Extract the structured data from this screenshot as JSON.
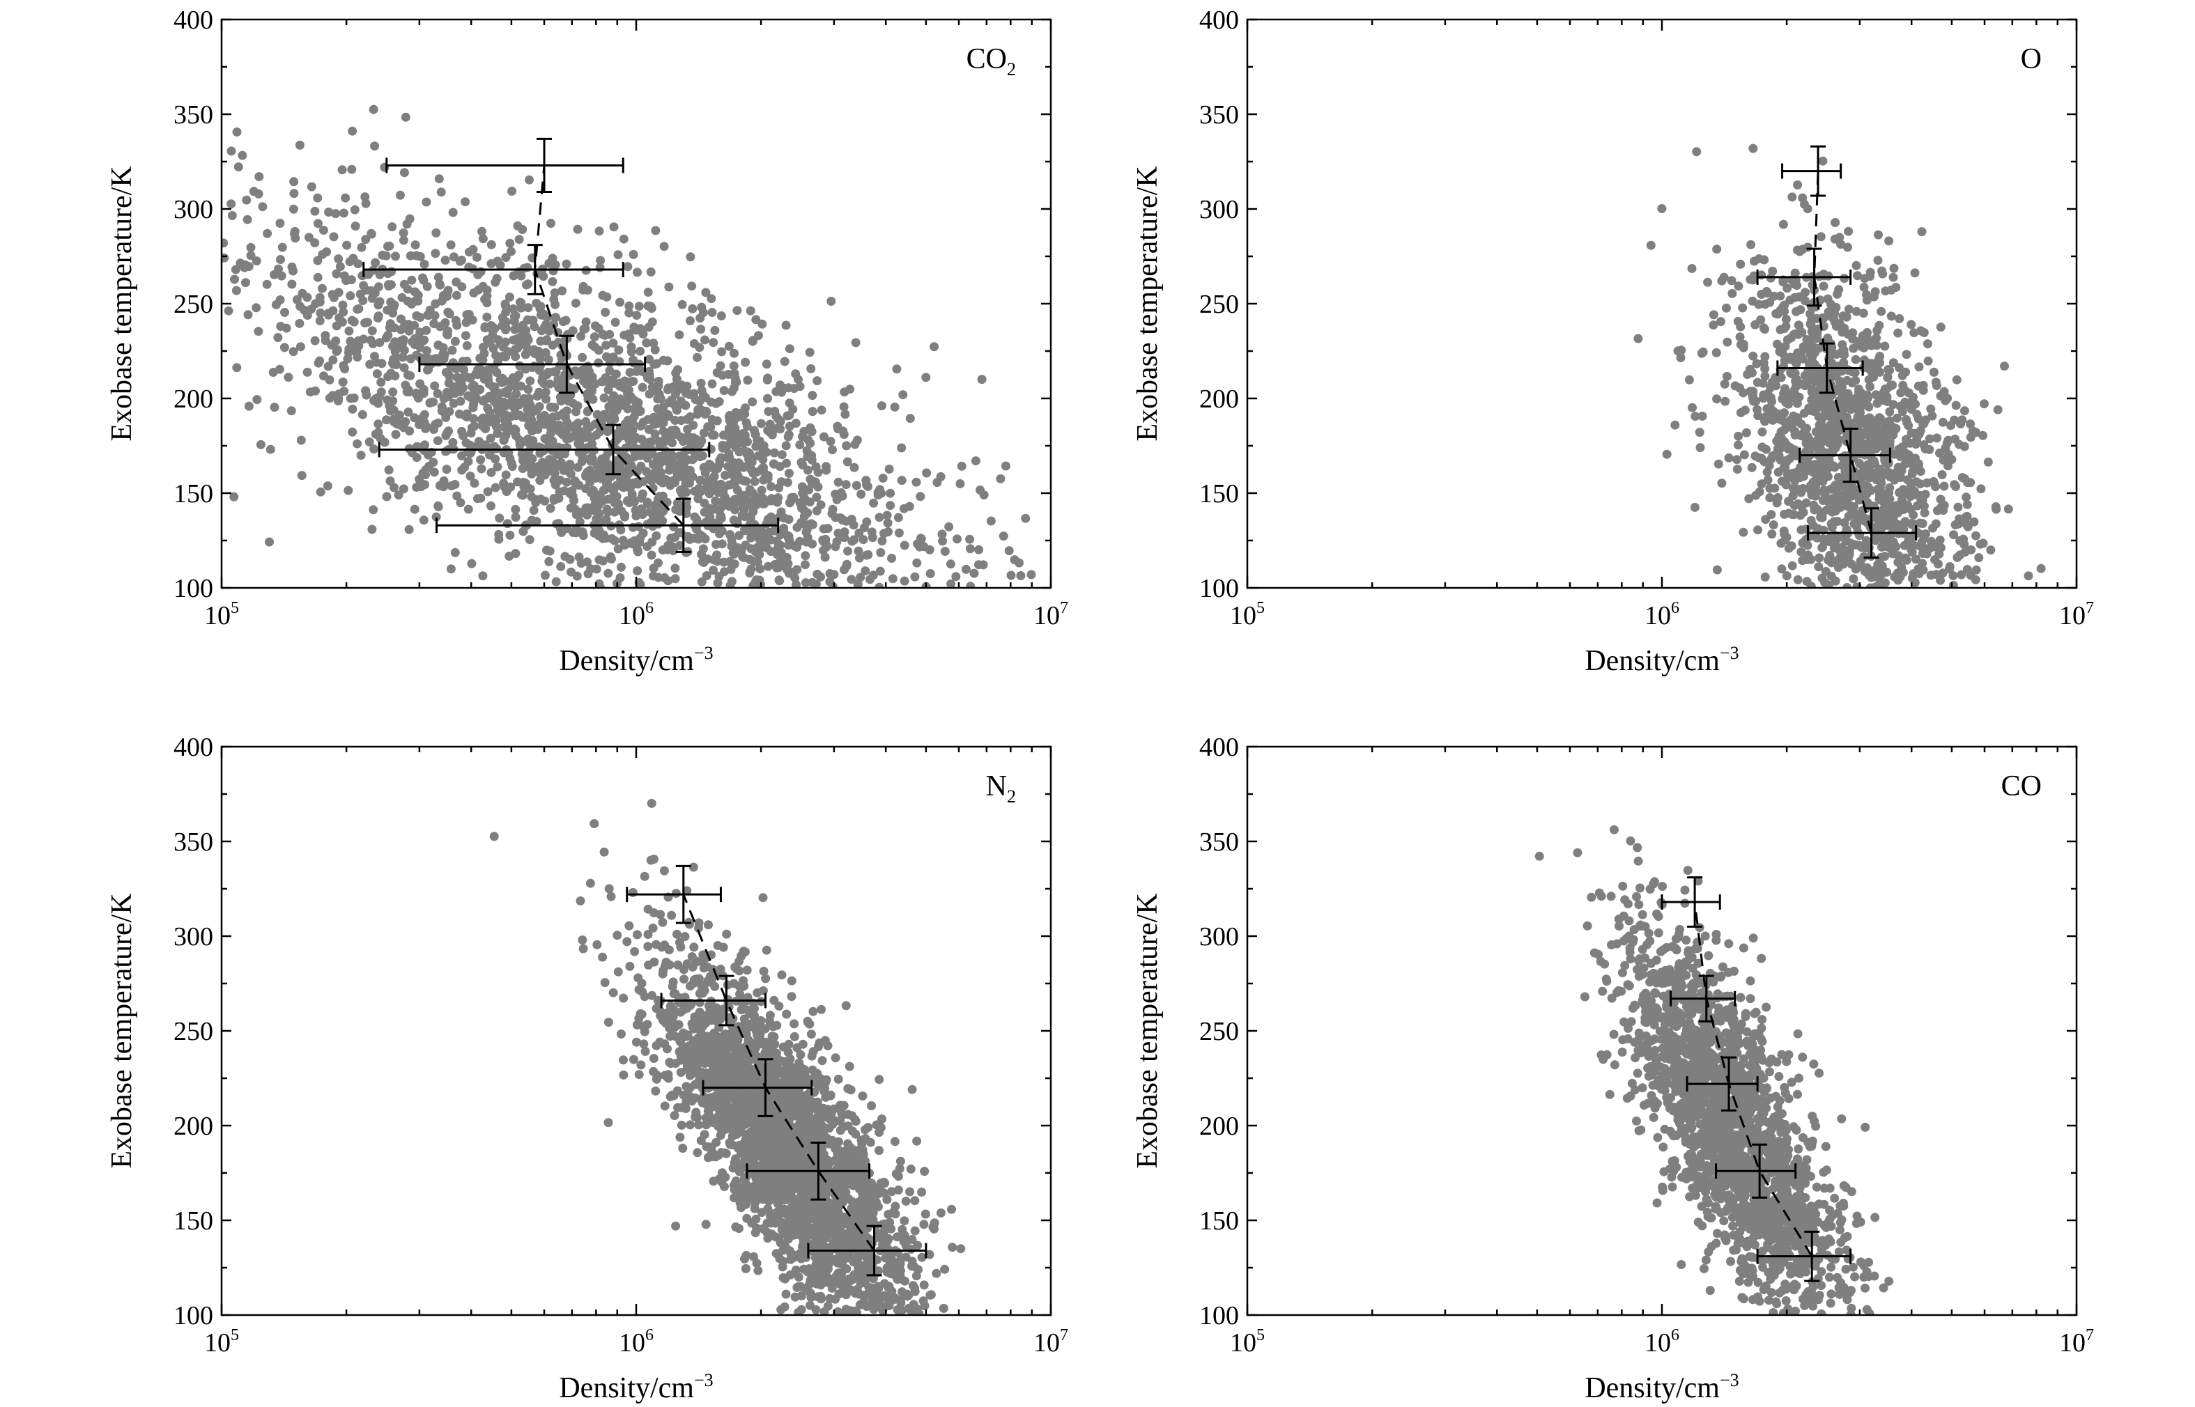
{
  "colors": {
    "points": "#7f7f7f",
    "lines": "#000000",
    "background": "#ffffff"
  },
  "chart_data": [
    {
      "type": "scatter",
      "panel": "top-left",
      "species_label": {
        "base": "CO",
        "sub": "2"
      },
      "species_label_position": "top-right",
      "xlabel": {
        "base": "Density/cm",
        "sup": "−3"
      },
      "ylabel": "Exobase temperature/K",
      "xscale": "log",
      "xlim": [
        100000,
        10000000
      ],
      "ylim": [
        100,
        400
      ],
      "x_ticks": [
        {
          "value": 100000,
          "base": "10",
          "exp": "5"
        },
        {
          "value": 1000000,
          "base": "10",
          "exp": "6"
        },
        {
          "value": 10000000,
          "base": "10",
          "exp": "7"
        }
      ],
      "y_ticks": [
        "100",
        "150",
        "200",
        "250",
        "300",
        "350",
        "400"
      ],
      "grid": false,
      "legend": "none",
      "scatter_cloud": {
        "count": 2600,
        "temp_center": 180,
        "temp_sd": 55,
        "log_density_center": 5.93,
        "log_density_slope": -0.0052,
        "log_density_sd": 0.3
      },
      "bins": [
        {
          "x": 1300000,
          "y": 133,
          "x_err": [
            330000,
            2200000
          ],
          "y_err": 14
        },
        {
          "x": 880000,
          "y": 173,
          "x_err": [
            240000,
            1500000
          ],
          "y_err": 13
        },
        {
          "x": 680000,
          "y": 218,
          "x_err": [
            300000,
            1050000
          ],
          "y_err": 15
        },
        {
          "x": 570000,
          "y": 268,
          "x_err": [
            220000,
            930000
          ],
          "y_err": 13
        },
        {
          "x": 600000,
          "y": 323,
          "x_err": [
            250000,
            930000
          ],
          "y_err": 14
        }
      ]
    },
    {
      "type": "scatter",
      "panel": "top-right",
      "species_label": {
        "base": "O",
        "sub": ""
      },
      "species_label_position": "top-right",
      "xlabel": {
        "base": "Density/cm",
        "sup": "−3"
      },
      "ylabel": "Exobase temperature/K",
      "xscale": "log",
      "xlim": [
        100000,
        10000000
      ],
      "ylim": [
        100,
        400
      ],
      "x_ticks": [
        {
          "value": 100000,
          "base": "10",
          "exp": "5"
        },
        {
          "value": 1000000,
          "base": "10",
          "exp": "6"
        },
        {
          "value": 10000000,
          "base": "10",
          "exp": "7"
        }
      ],
      "y_ticks": [
        "100",
        "150",
        "200",
        "250",
        "300",
        "350",
        "400"
      ],
      "grid": false,
      "legend": "none",
      "scatter_cloud": {
        "count": 1600,
        "temp_center": 170,
        "temp_sd": 50,
        "log_density_center": 6.455,
        "log_density_slope": -0.0012,
        "log_density_sd": 0.13
      },
      "bins": [
        {
          "x": 3200000,
          "y": 129,
          "x_err": [
            2250000,
            4100000
          ],
          "y_err": 13
        },
        {
          "x": 2850000,
          "y": 170,
          "x_err": [
            2150000,
            3550000
          ],
          "y_err": 14
        },
        {
          "x": 2500000,
          "y": 216,
          "x_err": [
            1900000,
            3050000
          ],
          "y_err": 13
        },
        {
          "x": 2330000,
          "y": 264,
          "x_err": [
            1700000,
            2850000
          ],
          "y_err": 15
        },
        {
          "x": 2380000,
          "y": 320,
          "x_err": [
            1950000,
            2700000
          ],
          "y_err": 13
        }
      ]
    },
    {
      "type": "scatter",
      "panel": "bottom-left",
      "species_label": {
        "base": "N",
        "sub": "2"
      },
      "species_label_position": "top-right",
      "xlabel": {
        "base": "Density/cm",
        "sup": "−3"
      },
      "ylabel": "Exobase temperature/K",
      "xscale": "log",
      "xlim": [
        100000,
        10000000
      ],
      "ylim": [
        100,
        400
      ],
      "x_ticks": [
        {
          "value": 100000,
          "base": "10",
          "exp": "5"
        },
        {
          "value": 1000000,
          "base": "10",
          "exp": "6"
        },
        {
          "value": 10000000,
          "base": "10",
          "exp": "7"
        }
      ],
      "y_ticks": [
        "100",
        "150",
        "200",
        "250",
        "300",
        "350",
        "400"
      ],
      "grid": false,
      "legend": "none",
      "scatter_cloud": {
        "count": 2600,
        "temp_center": 185,
        "temp_sd": 52,
        "log_density_center": 6.37,
        "log_density_slope": -0.0024,
        "log_density_sd": 0.1
      },
      "bins": [
        {
          "x": 3750000,
          "y": 134,
          "x_err": [
            2600000,
            5000000
          ],
          "y_err": 13
        },
        {
          "x": 2750000,
          "y": 176,
          "x_err": [
            1850000,
            3650000
          ],
          "y_err": 15
        },
        {
          "x": 2050000,
          "y": 220,
          "x_err": [
            1450000,
            2650000
          ],
          "y_err": 15
        },
        {
          "x": 1650000,
          "y": 266,
          "x_err": [
            1150000,
            2050000
          ],
          "y_err": 13
        },
        {
          "x": 1300000,
          "y": 322,
          "x_err": [
            950000,
            1600000
          ],
          "y_err": 15
        }
      ]
    },
    {
      "type": "scatter",
      "panel": "bottom-right",
      "species_label": {
        "base": "CO",
        "sub": ""
      },
      "species_label_position": "top-right",
      "xlabel": {
        "base": "Density/cm",
        "sup": "−3"
      },
      "ylabel": "Exobase temperature/K",
      "xscale": "log",
      "xlim": [
        100000,
        10000000
      ],
      "ylim": [
        100,
        400
      ],
      "x_ticks": [
        {
          "value": 100000,
          "base": "10",
          "exp": "5"
        },
        {
          "value": 1000000,
          "base": "10",
          "exp": "6"
        },
        {
          "value": 10000000,
          "base": "10",
          "exp": "7"
        }
      ],
      "y_ticks": [
        "100",
        "150",
        "200",
        "250",
        "300",
        "350",
        "400"
      ],
      "grid": false,
      "legend": "none",
      "scatter_cloud": {
        "count": 2000,
        "temp_center": 200,
        "temp_sd": 52,
        "log_density_center": 6.17,
        "log_density_slope": -0.00195,
        "log_density_sd": 0.085
      },
      "bins": [
        {
          "x": 2300000,
          "y": 131,
          "x_err": [
            1700000,
            2850000
          ],
          "y_err": 13
        },
        {
          "x": 1720000,
          "y": 176,
          "x_err": [
            1350000,
            2100000
          ],
          "y_err": 14
        },
        {
          "x": 1450000,
          "y": 222,
          "x_err": [
            1150000,
            1700000
          ],
          "y_err": 14
        },
        {
          "x": 1280000,
          "y": 267,
          "x_err": [
            1050000,
            1500000
          ],
          "y_err": 12
        },
        {
          "x": 1200000,
          "y": 318,
          "x_err": [
            1000000,
            1380000
          ],
          "y_err": 13
        }
      ]
    }
  ]
}
